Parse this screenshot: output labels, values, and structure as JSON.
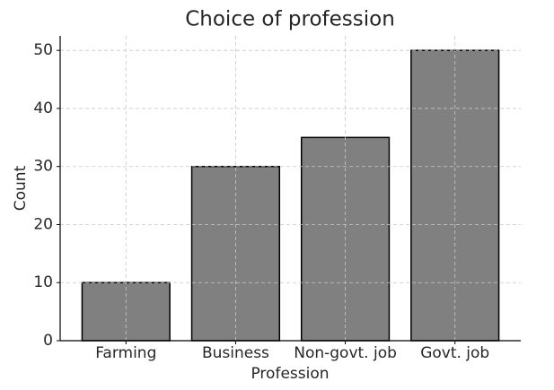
{
  "chart_data": {
    "type": "bar",
    "title": "Choice of profession",
    "x_label": "Profession",
    "y_label": "Count",
    "categories": [
      "Farming",
      "Business",
      "Non-govt. job",
      "Govt. job"
    ],
    "values": [
      10,
      30,
      35,
      50
    ],
    "color": "#808080",
    "edgecolor": "#000000",
    "ylim": [
      0,
      52.5
    ],
    "yticks": [
      0,
      10,
      20,
      30,
      40,
      50
    ],
    "grid": true
  }
}
